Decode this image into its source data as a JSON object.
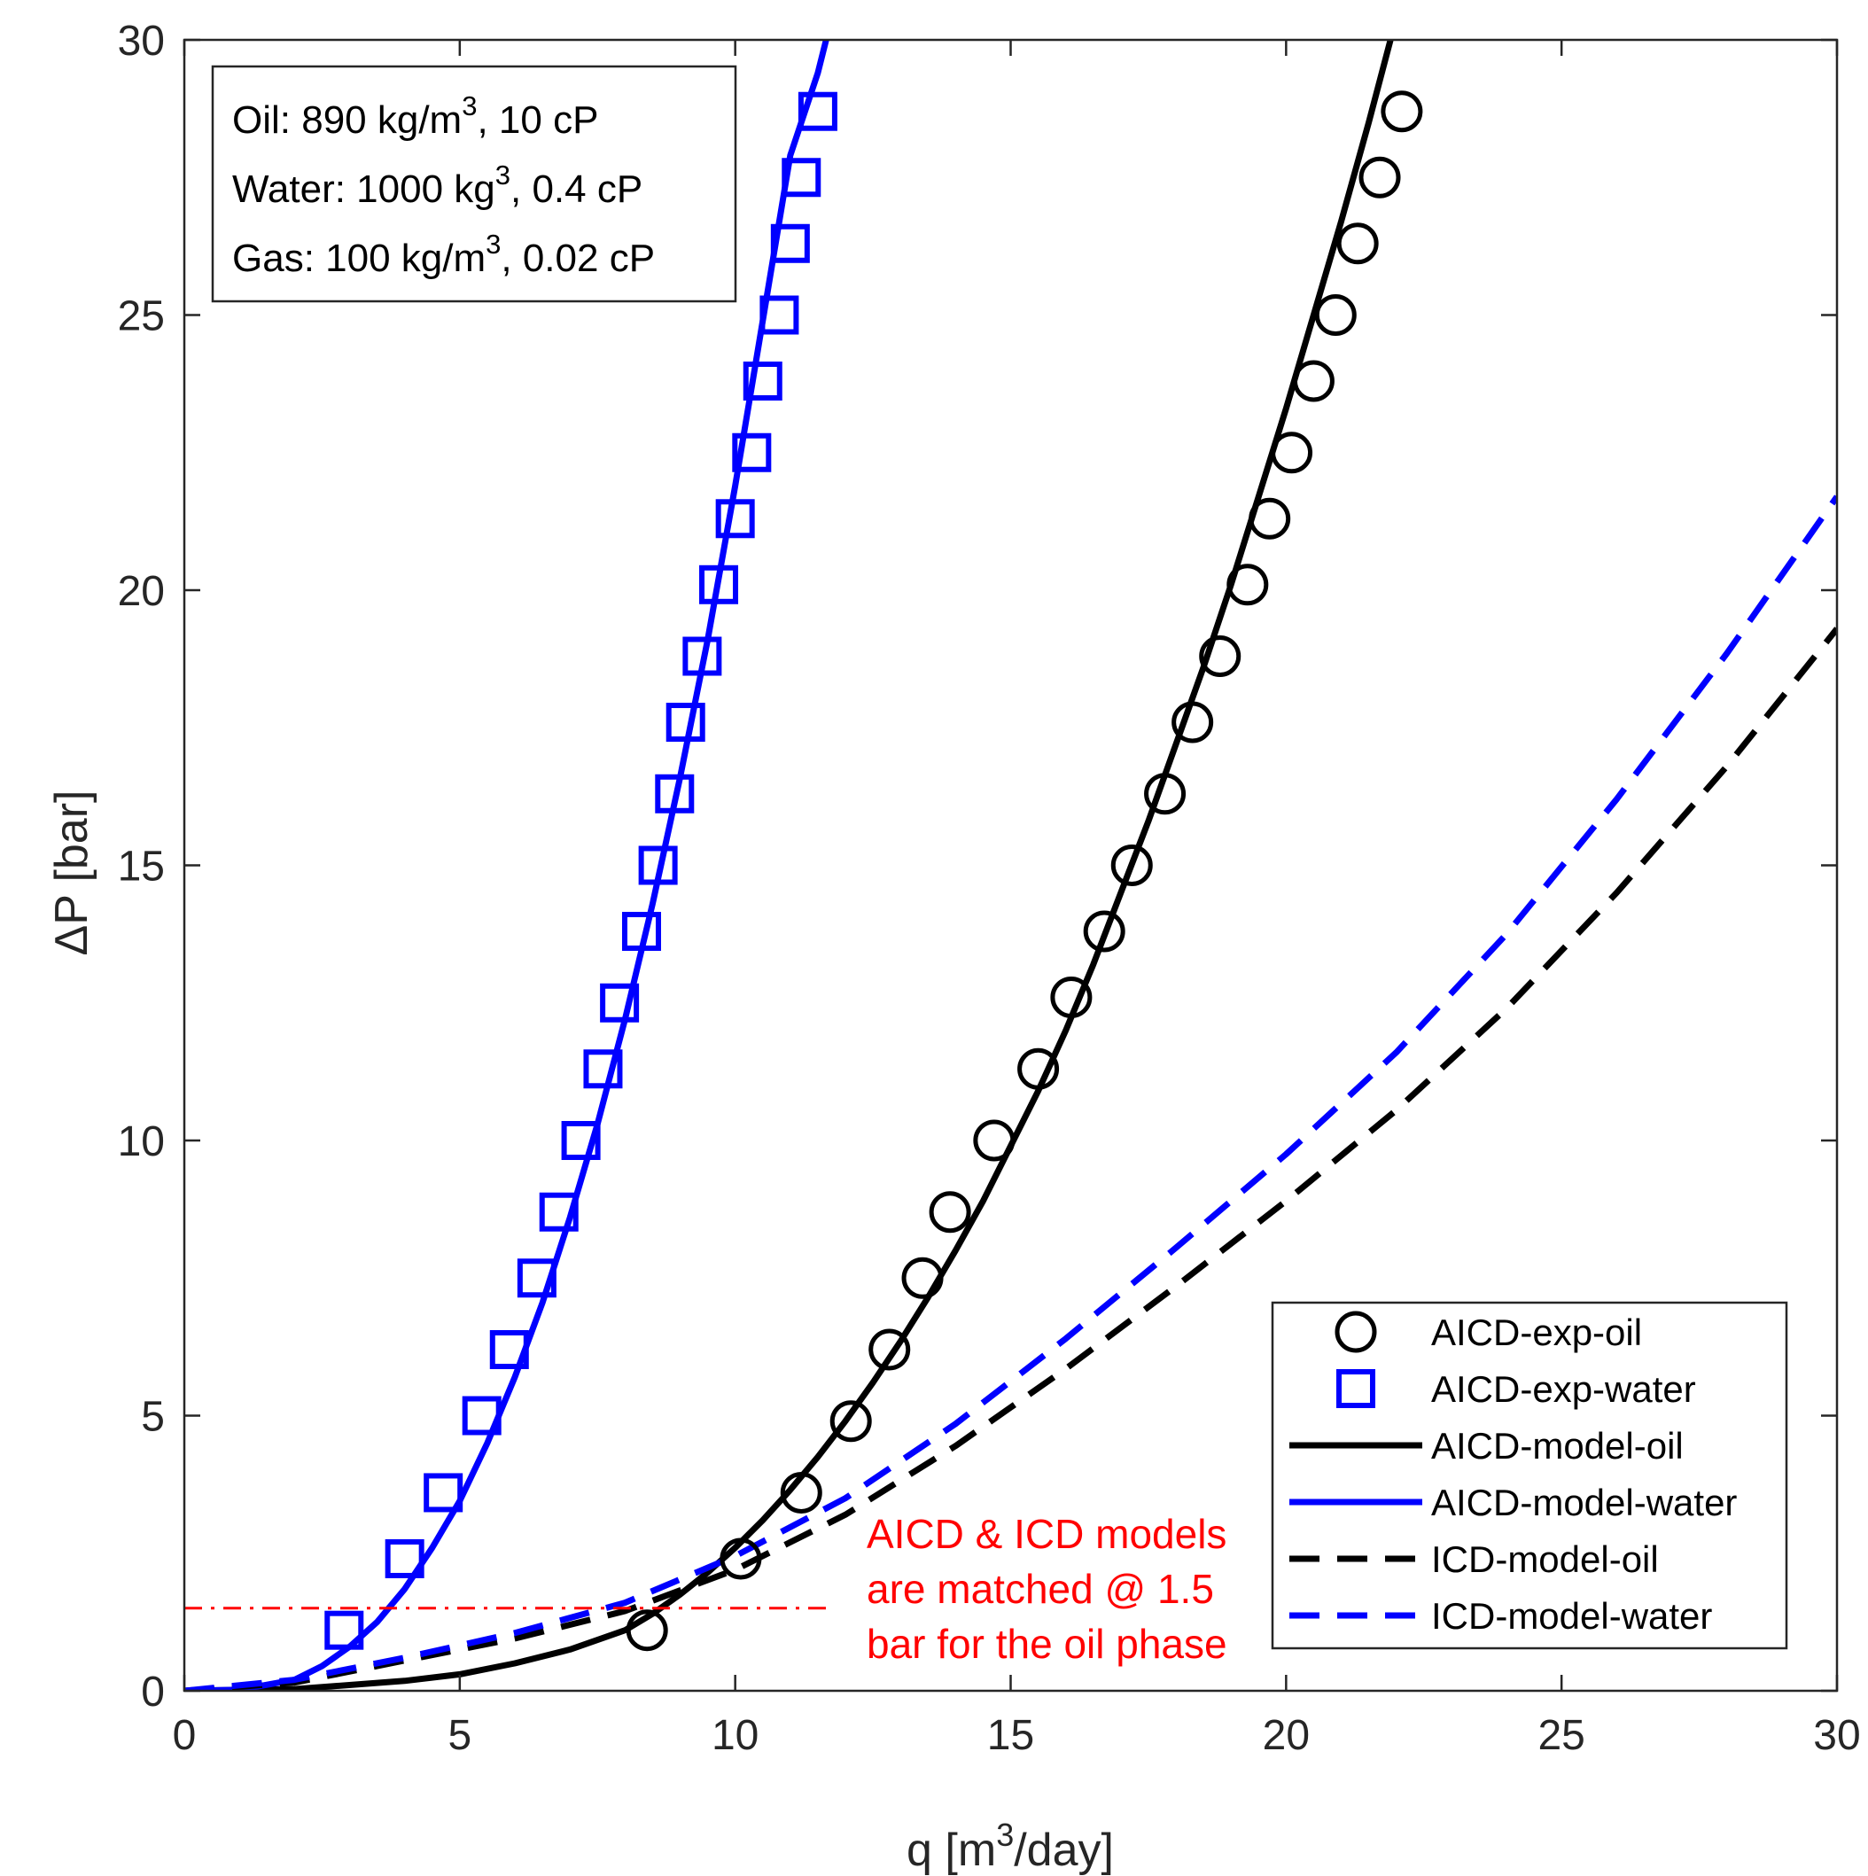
{
  "chart_data": {
    "type": "scatter",
    "xlabel_prefix": "q [m",
    "xlabel_sup": "3",
    "xlabel_suffix": "/day]",
    "ylabel": "ΔP [bar]",
    "xlim": [
      0,
      30
    ],
    "ylim": [
      0,
      30
    ],
    "xticks": [
      0,
      5,
      10,
      15,
      20,
      25,
      30
    ],
    "yticks": [
      0,
      5,
      10,
      15,
      20,
      25,
      30
    ],
    "grid": false,
    "legend_position": "bottom-right",
    "series": [
      {
        "name": "AICD-exp-oil",
        "kind": "markers",
        "marker": "circle",
        "color": "#000000",
        "x": [
          8.4,
          10.1,
          11.2,
          12.1,
          12.8,
          13.4,
          13.9,
          14.7,
          15.5,
          16.1,
          16.7,
          17.2,
          17.8,
          18.3,
          18.8,
          19.3,
          19.7,
          20.1,
          20.5,
          20.9,
          21.3,
          21.7,
          22.1
        ],
        "y": [
          1.1,
          2.4,
          3.6,
          4.9,
          6.2,
          7.5,
          8.7,
          10.0,
          11.3,
          12.6,
          13.8,
          15.0,
          16.3,
          17.6,
          18.8,
          20.1,
          21.3,
          22.5,
          23.8,
          25.0,
          26.3,
          27.5,
          28.7
        ]
      },
      {
        "name": "AICD-exp-water",
        "kind": "markers",
        "marker": "square",
        "color": "#0000ff",
        "x": [
          2.9,
          4.0,
          4.7,
          5.4,
          5.9,
          6.4,
          6.8,
          7.2,
          7.6,
          7.9,
          8.3,
          8.6,
          8.9,
          9.1,
          9.4,
          9.7,
          10.0,
          10.3,
          10.5,
          10.8,
          11.0,
          11.2,
          11.5
        ],
        "y": [
          1.1,
          2.4,
          3.6,
          5.0,
          6.2,
          7.5,
          8.7,
          10.0,
          11.3,
          12.5,
          13.8,
          15.0,
          16.3,
          17.6,
          18.8,
          20.1,
          21.3,
          22.5,
          23.8,
          25.0,
          26.3,
          27.5,
          28.7
        ]
      },
      {
        "name": "AICD-model-oil",
        "kind": "line",
        "dash": "solid",
        "color": "#000000",
        "x": [
          0,
          2,
          4,
          5,
          6,
          7,
          8,
          8.5,
          9,
          9.5,
          10,
          10.5,
          11,
          11.5,
          12,
          12.5,
          13,
          13.5,
          14,
          14.5,
          15,
          15.5,
          16,
          16.5,
          17,
          17.5,
          18,
          18.5,
          19,
          19.5,
          20,
          20.5,
          21,
          21.5,
          22
        ],
        "y": [
          0,
          0.03,
          0.18,
          0.3,
          0.5,
          0.75,
          1.1,
          1.4,
          1.75,
          2.15,
          2.6,
          3.1,
          3.65,
          4.25,
          4.9,
          5.6,
          6.35,
          7.15,
          8.0,
          8.9,
          9.9,
          10.9,
          12.0,
          13.2,
          14.5,
          15.8,
          17.2,
          18.6,
          20.1,
          21.7,
          23.3,
          25.0,
          26.7,
          28.5,
          30.4
        ]
      },
      {
        "name": "AICD-model-water",
        "kind": "line",
        "dash": "solid",
        "color": "#0000ff",
        "x": [
          0,
          1,
          2,
          2.5,
          3,
          3.5,
          4,
          4.5,
          5,
          5.5,
          6,
          6.5,
          7,
          7.5,
          8,
          8.5,
          9,
          9.5,
          10,
          10.5,
          11,
          11.5,
          11.75
        ],
        "y": [
          0,
          0.02,
          0.2,
          0.45,
          0.8,
          1.25,
          1.85,
          2.6,
          3.45,
          4.5,
          5.7,
          7.05,
          8.6,
          10.3,
          12.2,
          14.3,
          16.6,
          19.1,
          21.9,
          24.9,
          27.9,
          29.4,
          30.4
        ]
      },
      {
        "name": "ICD-model-oil",
        "kind": "line",
        "dash": "dashed",
        "color": "#000000",
        "x": [
          0,
          2,
          4,
          6,
          8,
          10,
          12,
          14,
          16,
          18,
          20,
          22,
          24,
          26,
          28,
          30
        ],
        "y": [
          0,
          0.15,
          0.55,
          0.95,
          1.45,
          2.2,
          3.2,
          4.45,
          5.85,
          7.35,
          8.9,
          10.55,
          12.4,
          14.5,
          16.8,
          19.3
        ]
      },
      {
        "name": "ICD-model-water",
        "kind": "line",
        "dash": "dashed",
        "color": "#0000ff",
        "x": [
          0,
          2,
          4,
          6,
          8,
          10,
          12,
          14,
          16,
          18,
          20,
          22,
          24,
          26,
          28,
          30
        ],
        "y": [
          0,
          0.2,
          0.6,
          1.05,
          1.6,
          2.45,
          3.5,
          4.85,
          6.4,
          8.05,
          9.75,
          11.6,
          13.75,
          16.2,
          18.85,
          21.7
        ]
      },
      {
        "name": "match-line",
        "kind": "reference",
        "dash": "dashdot",
        "color": "#ff0000",
        "x": [
          0,
          11.8
        ],
        "y": [
          1.5,
          1.5
        ]
      }
    ],
    "annotations": {
      "properties_box": [
        {
          "prefix": "Oil: 890 kg/m",
          "sup": "3",
          "suffix": ", 10 cP"
        },
        {
          "prefix": "Water: 1000 kg",
          "sup": "3",
          "suffix": ", 0.4 cP"
        },
        {
          "prefix": "Gas: 100 kg/m",
          "sup": "3",
          "suffix": ", 0.02 cP"
        }
      ],
      "match_note": {
        "lines": [
          "AICD & ICD models",
          "are matched @ 1.5",
          "bar for the oil phase"
        ],
        "color": "#ff0000"
      }
    }
  }
}
